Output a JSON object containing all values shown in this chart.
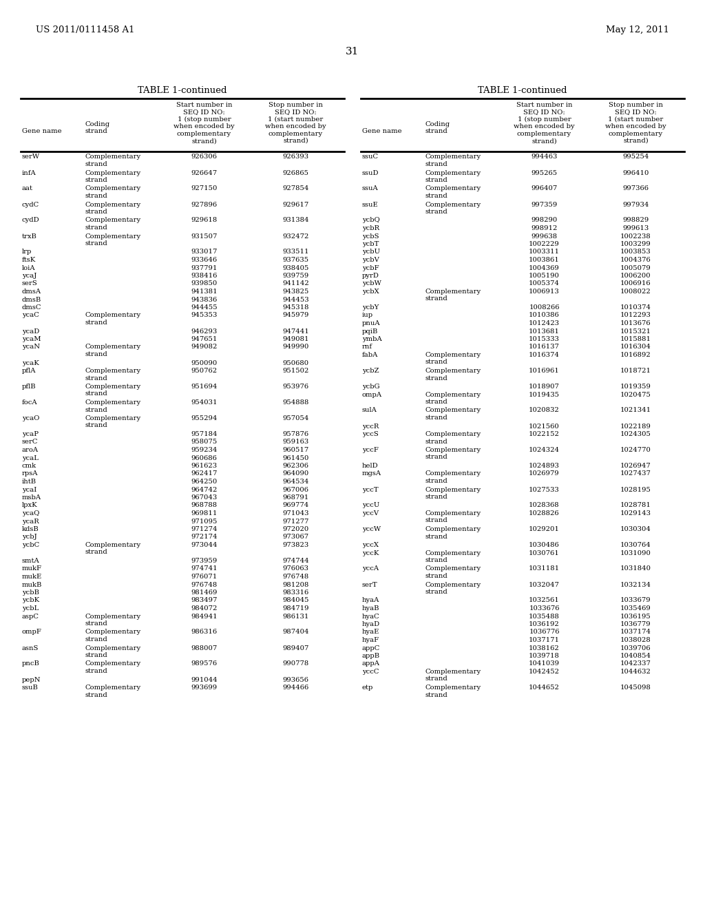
{
  "header_left": "US 2011/0111458 A1",
  "header_right": "May 12, 2011",
  "page_number": "31",
  "table_title": "TABLE 1-continued",
  "left_table": [
    [
      "serW",
      "Complementary\nstrand",
      "926306",
      "926393"
    ],
    [
      "infA",
      "Complementary\nstrand",
      "926647",
      "926865"
    ],
    [
      "aat",
      "Complementary\nstrand",
      "927150",
      "927854"
    ],
    [
      "cydC",
      "Complementary\nstrand",
      "927896",
      "929617"
    ],
    [
      "cydD",
      "Complementary\nstrand",
      "929618",
      "931384"
    ],
    [
      "trxB",
      "Complementary\nstrand",
      "931507",
      "932472"
    ],
    [
      "lrp",
      "",
      "933017",
      "933511"
    ],
    [
      "ftsK",
      "",
      "933646",
      "937635"
    ],
    [
      "loiA",
      "",
      "937791",
      "938405"
    ],
    [
      "ycaJ",
      "",
      "938416",
      "939759"
    ],
    [
      "serS",
      "",
      "939850",
      "941142"
    ],
    [
      "dmsA",
      "",
      "941381",
      "943825"
    ],
    [
      "dmsB",
      "",
      "943836",
      "944453"
    ],
    [
      "dmsC",
      "",
      "944455",
      "945318"
    ],
    [
      "ycaC",
      "Complementary\nstrand",
      "945353",
      "945979"
    ],
    [
      "ycaD",
      "",
      "946293",
      "947441"
    ],
    [
      "ycaM",
      "",
      "947651",
      "949081"
    ],
    [
      "ycaN",
      "Complementary\nstrand",
      "949082",
      "949990"
    ],
    [
      "ycaK",
      "",
      "950090",
      "950680"
    ],
    [
      "pflA",
      "Complementary\nstrand",
      "950762",
      "951502"
    ],
    [
      "pflB",
      "Complementary\nstrand",
      "951694",
      "953976"
    ],
    [
      "focA",
      "Complementary\nstrand",
      "954031",
      "954888"
    ],
    [
      "ycaO",
      "Complementary\nstrand",
      "955294",
      "957054"
    ],
    [
      "ycaP",
      "",
      "957184",
      "957876"
    ],
    [
      "serC",
      "",
      "958075",
      "959163"
    ],
    [
      "aroA",
      "",
      "959234",
      "960517"
    ],
    [
      "ycaL",
      "",
      "960686",
      "961450"
    ],
    [
      "cmk",
      "",
      "961623",
      "962306"
    ],
    [
      "rpsA",
      "",
      "962417",
      "964090"
    ],
    [
      "ihtB",
      "",
      "964250",
      "964534"
    ],
    [
      "ycaI",
      "",
      "964742",
      "967006"
    ],
    [
      "msbA",
      "",
      "967043",
      "968791"
    ],
    [
      "lpxK",
      "",
      "968788",
      "969774"
    ],
    [
      "ycaQ",
      "",
      "969811",
      "971043"
    ],
    [
      "ycaR",
      "",
      "971095",
      "971277"
    ],
    [
      "kdsB",
      "",
      "971274",
      "972020"
    ],
    [
      "ycbJ",
      "",
      "972174",
      "973067"
    ],
    [
      "ycbC",
      "Complementary\nstrand",
      "973044",
      "973823"
    ],
    [
      "smtA",
      "",
      "973959",
      "974744"
    ],
    [
      "mukF",
      "",
      "974741",
      "976063"
    ],
    [
      "mukE",
      "",
      "976071",
      "976748"
    ],
    [
      "mukB",
      "",
      "976748",
      "981208"
    ],
    [
      "ycbB",
      "",
      "981469",
      "983316"
    ],
    [
      "ycbK",
      "",
      "983497",
      "984045"
    ],
    [
      "ycbL",
      "",
      "984072",
      "984719"
    ],
    [
      "aspC",
      "Complementary\nstrand",
      "984941",
      "986131"
    ],
    [
      "ompF",
      "Complementary\nstrand",
      "986316",
      "987404"
    ],
    [
      "asnS",
      "Complementary\nstrand",
      "988007",
      "989407"
    ],
    [
      "pncB",
      "Complementary\nstrand",
      "989576",
      "990778"
    ],
    [
      "pepN",
      "",
      "991044",
      "993656"
    ],
    [
      "ssuB",
      "Complementary\nstrand",
      "993699",
      "994466"
    ]
  ],
  "right_table": [
    [
      "ssuC",
      "Complementary\nstrand",
      "994463",
      "995254"
    ],
    [
      "ssuD",
      "Complementary\nstrand",
      "995265",
      "996410"
    ],
    [
      "ssuA",
      "Complementary\nstrand",
      "996407",
      "997366"
    ],
    [
      "ssuE",
      "Complementary\nstrand",
      "997359",
      "997934"
    ],
    [
      "ycbQ",
      "",
      "998290",
      "998829"
    ],
    [
      "ycbR",
      "",
      "998912",
      "999613"
    ],
    [
      "ycbS",
      "",
      "999638",
      "1002238"
    ],
    [
      "ycbT",
      "",
      "1002229",
      "1003299"
    ],
    [
      "ycbU",
      "",
      "1003311",
      "1003853"
    ],
    [
      "ycbV",
      "",
      "1003861",
      "1004376"
    ],
    [
      "ycbF",
      "",
      "1004369",
      "1005079"
    ],
    [
      "pyrD",
      "",
      "1005190",
      "1006200"
    ],
    [
      "ycbW",
      "",
      "1005374",
      "1006916"
    ],
    [
      "ycbX",
      "Complementary\nstrand",
      "1006913",
      "1008022"
    ],
    [
      "ycbY",
      "",
      "1008266",
      "1010374"
    ],
    [
      "iup",
      "",
      "1010386",
      "1012293"
    ],
    [
      "pnuA",
      "",
      "1012423",
      "1013676"
    ],
    [
      "pqiB",
      "",
      "1013681",
      "1015321"
    ],
    [
      "ymbA",
      "",
      "1015333",
      "1015881"
    ],
    [
      "rnf",
      "",
      "1016137",
      "1016304"
    ],
    [
      "fabA",
      "Complementary\nstrand",
      "1016374",
      "1016892"
    ],
    [
      "ycbZ",
      "Complementary\nstrand",
      "1016961",
      "1018721"
    ],
    [
      "ycbG",
      "",
      "1018907",
      "1019359"
    ],
    [
      "ompA",
      "Complementary\nstrand",
      "1019435",
      "1020475"
    ],
    [
      "sulA",
      "Complementary\nstrand",
      "1020832",
      "1021341"
    ],
    [
      "yccR",
      "",
      "1021560",
      "1022189"
    ],
    [
      "yccS",
      "Complementary\nstrand",
      "1022152",
      "1024305"
    ],
    [
      "yccF",
      "Complementary\nstrand",
      "1024324",
      "1024770"
    ],
    [
      "helD",
      "",
      "1024893",
      "1026947"
    ],
    [
      "mgsA",
      "Complementary\nstrand",
      "1026979",
      "1027437"
    ],
    [
      "yccT",
      "Complementary\nstrand",
      "1027533",
      "1028195"
    ],
    [
      "yccU",
      "",
      "1028368",
      "1028781"
    ],
    [
      "yccV",
      "Complementary\nstrand",
      "1028826",
      "1029143"
    ],
    [
      "yccW",
      "Complementary\nstrand",
      "1029201",
      "1030304"
    ],
    [
      "yccX",
      "",
      "1030486",
      "1030764"
    ],
    [
      "yccK",
      "Complementary\nstrand",
      "1030761",
      "1031090"
    ],
    [
      "yccA",
      "Complementary\nstrand",
      "1031181",
      "1031840"
    ],
    [
      "serT",
      "Complementary\nstrand",
      "1032047",
      "1032134"
    ],
    [
      "hyaA",
      "",
      "1032561",
      "1033679"
    ],
    [
      "hyaB",
      "",
      "1033676",
      "1035469"
    ],
    [
      "hyaC",
      "",
      "1035488",
      "1036195"
    ],
    [
      "hyaD",
      "",
      "1036192",
      "1036779"
    ],
    [
      "hyaE",
      "",
      "1036776",
      "1037174"
    ],
    [
      "hyaF",
      "",
      "1037171",
      "1038028"
    ],
    [
      "appC",
      "",
      "1038162",
      "1039706"
    ],
    [
      "appB",
      "",
      "1039718",
      "1040854"
    ],
    [
      "appA",
      "",
      "1041039",
      "1042337"
    ],
    [
      "yccC",
      "Complementary\nstrand",
      "1042452",
      "1044632"
    ],
    [
      "etp",
      "Complementary\nstrand",
      "1044652",
      "1045098"
    ]
  ]
}
